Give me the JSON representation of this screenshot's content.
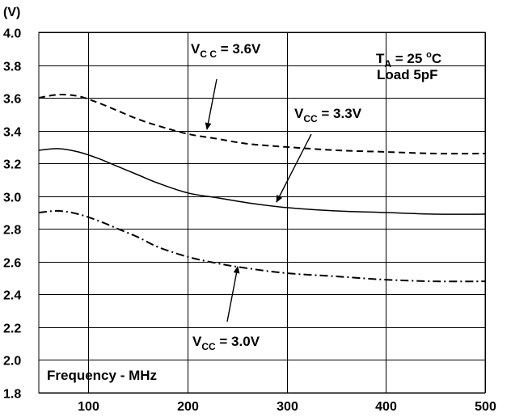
{
  "chart_data": {
    "type": "line",
    "title": "",
    "xlabel": "Frequency - MHz",
    "ylabel": "(V)",
    "xlim": [
      50,
      500
    ],
    "ylim": [
      1.8,
      4.0
    ],
    "x_ticks": [
      100,
      200,
      300,
      400,
      500
    ],
    "y_ticks": [
      1.8,
      2.0,
      2.2,
      2.4,
      2.6,
      2.8,
      3.0,
      3.2,
      3.4,
      3.6,
      3.8,
      4.0
    ],
    "y_tick_labels": [
      "1.8",
      "2.0",
      "2.2",
      "2.4",
      "2.6",
      "2.8",
      "3.0",
      "3.2",
      "3.4",
      "3.6",
      "3.8",
      "4.0"
    ],
    "grid": true,
    "conditions": {
      "ta_prefix": "T",
      "ta_sub": "A",
      "ta_value": " = 25 ",
      "ta_sup": "o",
      "ta_unit": "C",
      "load": "Load 5pF"
    },
    "series": [
      {
        "label_prefix": "V",
        "label_sub": "C C",
        "label_value": " = 3.6V",
        "style": "dashed",
        "x": [
          50,
          70,
          90,
          110,
          130,
          150,
          170,
          200,
          230,
          260,
          300,
          350,
          400,
          450,
          500
        ],
        "y": [
          3.6,
          3.62,
          3.61,
          3.57,
          3.52,
          3.47,
          3.43,
          3.38,
          3.35,
          3.32,
          3.3,
          3.28,
          3.27,
          3.26,
          3.26
        ]
      },
      {
        "label_prefix": "V",
        "label_sub": "CC",
        "label_value": " = 3.3V",
        "style": "solid",
        "x": [
          50,
          70,
          90,
          110,
          130,
          150,
          170,
          200,
          230,
          260,
          300,
          350,
          400,
          450,
          500
        ],
        "y": [
          3.28,
          3.29,
          3.27,
          3.23,
          3.18,
          3.13,
          3.08,
          3.02,
          2.99,
          2.96,
          2.93,
          2.91,
          2.9,
          2.89,
          2.89
        ]
      },
      {
        "label_prefix": "V",
        "label_sub": "CC",
        "label_value": " = 3.0V",
        "style": "dashdot",
        "x": [
          50,
          70,
          90,
          110,
          130,
          150,
          170,
          200,
          230,
          260,
          300,
          350,
          400,
          450,
          500
        ],
        "y": [
          2.9,
          2.91,
          2.89,
          2.85,
          2.8,
          2.75,
          2.69,
          2.63,
          2.59,
          2.56,
          2.53,
          2.51,
          2.49,
          2.48,
          2.48
        ]
      }
    ]
  }
}
